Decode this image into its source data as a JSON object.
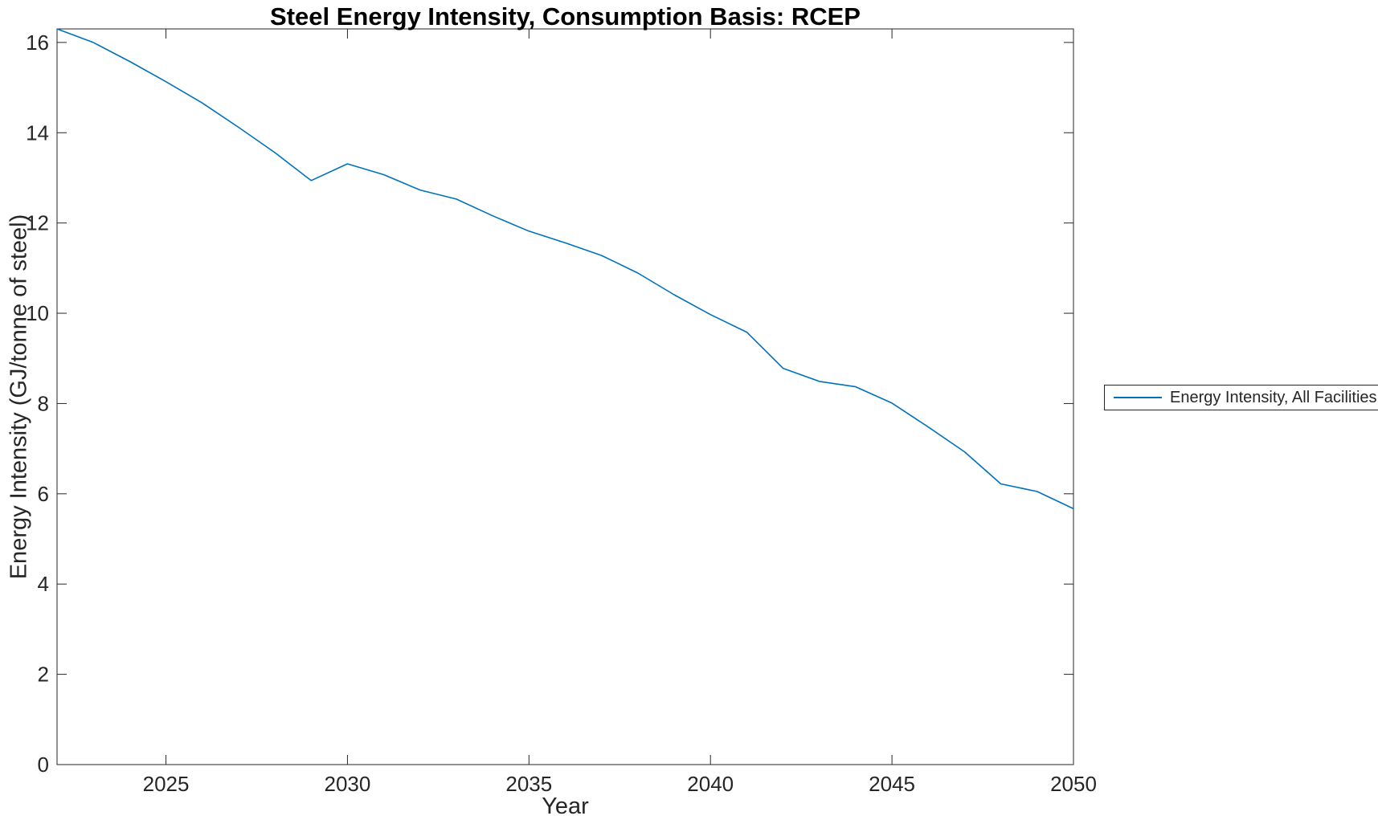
{
  "figure": {
    "title": "Steel Energy Intensity, Consumption Basis: RCEP",
    "xlabel": "Year",
    "ylabel": "Energy Intensity (GJ/tonne of steel)"
  },
  "legend": {
    "entries": [
      {
        "label": "Energy Intensity, All Facilities",
        "color": "#0072BD"
      }
    ]
  },
  "chart_data": {
    "type": "line",
    "title": "Steel Energy Intensity, Consumption Basis: RCEP",
    "xlabel": "Year",
    "ylabel": "Energy Intensity (GJ/tonne of steel)",
    "xlim": [
      2022,
      2050
    ],
    "ylim": [
      0,
      16.3
    ],
    "x_ticks": [
      2025,
      2030,
      2035,
      2040,
      2045,
      2050
    ],
    "y_ticks": [
      0,
      2,
      4,
      6,
      8,
      10,
      12,
      14,
      16
    ],
    "grid": false,
    "legend_position": "right-outside",
    "axis_color": "#262626",
    "series": [
      {
        "name": "Energy Intensity, All Facilities",
        "color": "#0072BD",
        "x": [
          2022,
          2023,
          2024,
          2025,
          2026,
          2027,
          2028,
          2029,
          2030,
          2031,
          2032,
          2033,
          2034,
          2035,
          2036,
          2037,
          2038,
          2039,
          2040,
          2041,
          2042,
          2043,
          2044,
          2045,
          2046,
          2047,
          2048,
          2049,
          2050
        ],
        "y": [
          16.3,
          16.0,
          15.58,
          15.13,
          14.66,
          14.12,
          13.56,
          12.94,
          13.31,
          13.07,
          12.73,
          12.53,
          12.16,
          11.82,
          11.56,
          11.28,
          10.89,
          10.41,
          9.97,
          9.58,
          8.78,
          8.49,
          8.37,
          8.01,
          7.48,
          6.93,
          6.22,
          6.05,
          5.67
        ]
      }
    ]
  }
}
